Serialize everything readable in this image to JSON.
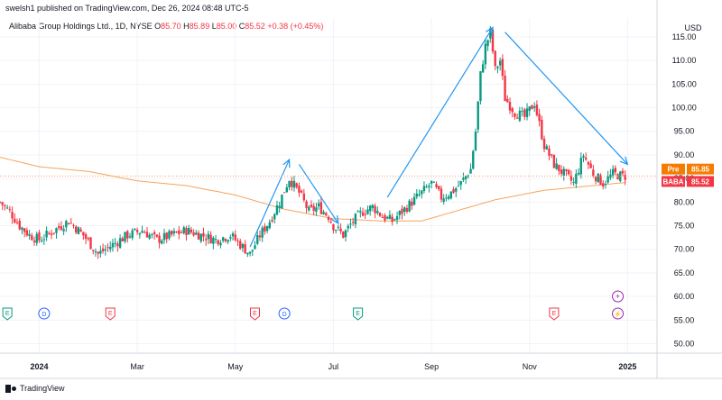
{
  "header": {
    "published": "swelsh1 published on TradingView.com, Dec 26, 2024 08:48 UTC-5"
  },
  "legend": {
    "symbol": "Alibaba Group Holdings Ltd., 1D, NYSE",
    "o_label": "O",
    "o": "85.70",
    "h_label": "H",
    "h": "85.89",
    "l_label": "L",
    "l": "85.00",
    "c_label": "C",
    "c": "85.52",
    "change": "+0.38 (+0.45%)"
  },
  "footer": {
    "brand": "TradingView"
  },
  "colors": {
    "up": "#089981",
    "down": "#f23645",
    "ma": "#f7a35c",
    "arrow": "#2196f3",
    "pre_badge": "#f57c00",
    "price_badge": "#f23645",
    "grid": "#f0f3fa",
    "text": "#131722"
  },
  "chart_data": {
    "type": "candlestick",
    "currency": "USD",
    "y_ticks": [
      50,
      55,
      60,
      65,
      70,
      75,
      80,
      85,
      90,
      95,
      100,
      105,
      110,
      115
    ],
    "ylim": [
      48,
      119
    ],
    "x_ticks": [
      "2024",
      "Mar",
      "May",
      "Jul",
      "Sep",
      "Nov",
      "2025"
    ],
    "x_tick_months": [
      0,
      2,
      4,
      6,
      8,
      10,
      12
    ],
    "x_range_months": [
      -0.8,
      12.6
    ],
    "price_labels": [
      {
        "label": "Pre",
        "value": 85.85
      },
      {
        "label": "BABA",
        "value": 85.52
      }
    ],
    "close_series_months": [
      -0.8,
      -0.6,
      -0.4,
      -0.2,
      0,
      0.3,
      0.6,
      0.9,
      1.2,
      1.5,
      1.8,
      2.1,
      2.4,
      2.7,
      3.0,
      3.3,
      3.6,
      3.9,
      4.1,
      4.3,
      4.5,
      4.7,
      4.9,
      5.1,
      5.3,
      5.5,
      5.7,
      5.9,
      6.0,
      6.2,
      6.4,
      6.6,
      6.8,
      7.0,
      7.2,
      7.4,
      7.6,
      7.8,
      8.0,
      8.2,
      8.4,
      8.6,
      8.8,
      8.9,
      9.0,
      9.1,
      9.2,
      9.3,
      9.4,
      9.5,
      9.7,
      9.9,
      10.1,
      10.3,
      10.5,
      10.7,
      10.9,
      11.1,
      11.3,
      11.5,
      11.7,
      11.9,
      12.0
    ],
    "close_series": [
      80,
      78,
      75,
      73,
      72,
      74,
      76,
      73,
      69,
      71,
      73,
      74,
      72,
      73,
      74,
      73,
      72,
      73,
      71,
      69,
      73,
      76,
      80,
      85,
      82,
      78,
      79,
      77,
      75,
      73,
      76,
      78,
      79,
      77,
      76,
      78,
      80,
      82,
      84,
      81,
      82,
      84,
      87,
      95,
      107,
      113,
      116,
      108,
      110,
      102,
      99,
      98,
      101,
      92,
      88,
      86,
      84,
      90,
      86,
      84,
      86,
      85.5,
      85.52
    ],
    "ma_series_months": [
      -0.8,
      0,
      1,
      2,
      3,
      4,
      5,
      6,
      7,
      7.8,
      8.3,
      8.8,
      9.3,
      9.8,
      10.3,
      10.8,
      11.3,
      11.8,
      12.0
    ],
    "ma_series": [
      89.5,
      87.5,
      86.5,
      84.5,
      83.5,
      81.5,
      78.5,
      76.5,
      76.0,
      76.0,
      77.5,
      79.0,
      80.5,
      81.5,
      82.5,
      83.0,
      83.5,
      84.0,
      84.2
    ],
    "annotation_arrows": [
      {
        "from_month": 4.3,
        "from_value": 70.5,
        "to_month": 5.1,
        "to_value": 89
      },
      {
        "from_month": 5.3,
        "from_value": 88,
        "to_month": 6.1,
        "to_value": 75.5
      },
      {
        "from_month": 7.1,
        "from_value": 81,
        "to_month": 9.25,
        "to_value": 117
      },
      {
        "from_month": 9.5,
        "from_value": 116,
        "to_month": 12.0,
        "to_value": 88
      }
    ],
    "event_markers": [
      {
        "month": -0.65,
        "type": "E"
      },
      {
        "month": 0.1,
        "type": "D"
      },
      {
        "month": 1.45,
        "type": "E"
      },
      {
        "month": 4.4,
        "type": "E"
      },
      {
        "month": 5.0,
        "type": "D"
      },
      {
        "month": 6.5,
        "type": "E"
      },
      {
        "month": 10.5,
        "type": "E"
      },
      {
        "month": 11.8,
        "type": "+"
      },
      {
        "month": 11.8,
        "type": "S"
      }
    ]
  }
}
